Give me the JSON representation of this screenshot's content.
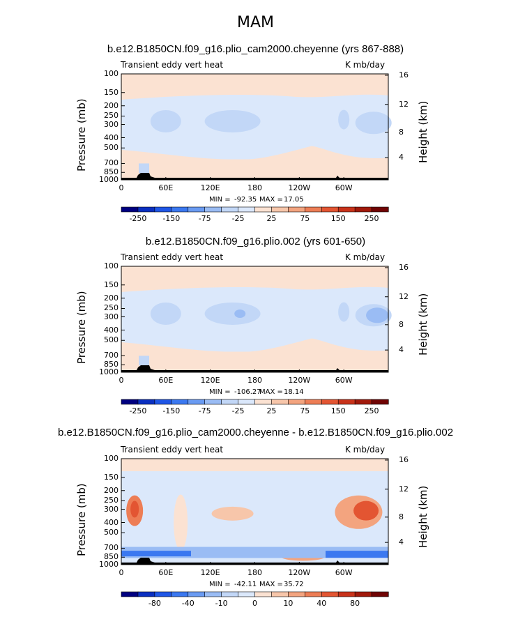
{
  "figure_title": "MAM",
  "chart_data": [
    {
      "type": "heatmap",
      "title": "b.e12.B1850CN.f09_g16.plio_cam2000.cheyenne (yrs 867-888)",
      "left_label": "Transient eddy vert heat",
      "right_label": "K mb/day",
      "ylabel": "Pressure (mb)",
      "ylabel_right": "Height (km)",
      "x_ticks": [
        "0",
        "60E",
        "120E",
        "180",
        "120W",
        "60W"
      ],
      "y_ticks": [
        "100",
        "150",
        "200",
        "250",
        "300",
        "400",
        "500",
        "700",
        "850",
        "1000"
      ],
      "y_ticks_right": [
        "16",
        "12",
        "8",
        "4"
      ],
      "stats": {
        "min_label": "MIN = ",
        "min": "-92.35",
        "max_label": "MAX = ",
        "max": "17.05"
      },
      "colorbar": {
        "levels": [
          "-250",
          "-150",
          "-75",
          "-25",
          "25",
          "75",
          "150",
          "250"
        ],
        "colors": [
          "#000080",
          "#0a2fc0",
          "#1f56e6",
          "#3b78f0",
          "#6a9bf2",
          "#9abcf4",
          "#c2d7f7",
          "#dbe8fb",
          "#fbe2d2",
          "#f7c6aa",
          "#f3a47f",
          "#ed7d55",
          "#e35532",
          "#c8321a",
          "#a1190b",
          "#700404"
        ]
      }
    },
    {
      "type": "heatmap",
      "title": "b.e12.B1850CN.f09_g16.plio.002 (yrs 601-650)",
      "left_label": "Transient eddy vert heat",
      "right_label": "K mb/day",
      "ylabel": "Pressure (mb)",
      "ylabel_right": "Height (km)",
      "x_ticks": [
        "0",
        "60E",
        "120E",
        "180",
        "120W",
        "60W"
      ],
      "y_ticks": [
        "100",
        "150",
        "200",
        "250",
        "300",
        "400",
        "500",
        "700",
        "850",
        "1000"
      ],
      "y_ticks_right": [
        "16",
        "12",
        "8",
        "4"
      ],
      "stats": {
        "min_label": "MIN = ",
        "min": "-106.27",
        "max_label": "MAX = ",
        "max": "18.14"
      },
      "colorbar": {
        "levels": [
          "-250",
          "-150",
          "-75",
          "-25",
          "25",
          "75",
          "150",
          "250"
        ],
        "colors": [
          "#000080",
          "#0a2fc0",
          "#1f56e6",
          "#3b78f0",
          "#6a9bf2",
          "#9abcf4",
          "#c2d7f7",
          "#dbe8fb",
          "#fbe2d2",
          "#f7c6aa",
          "#f3a47f",
          "#ed7d55",
          "#e35532",
          "#c8321a",
          "#a1190b",
          "#700404"
        ]
      }
    },
    {
      "type": "heatmap",
      "title": "b.e12.B1850CN.f09_g16.plio_cam2000.cheyenne - b.e12.B1850CN.f09_g16.plio.002",
      "left_label": "Transient eddy vert heat",
      "right_label": "K mb/day",
      "ylabel": "Pressure (mb)",
      "ylabel_right": "Height (km)",
      "x_ticks": [
        "0",
        "60E",
        "120E",
        "180",
        "120W",
        "60W"
      ],
      "y_ticks": [
        "100",
        "150",
        "200",
        "250",
        "300",
        "400",
        "500",
        "700",
        "850",
        "1000"
      ],
      "y_ticks_right": [
        "16",
        "12",
        "8",
        "4"
      ],
      "stats": {
        "min_label": "MIN = ",
        "min": "-42.11",
        "max_label": "MAX = ",
        "max": "35.72"
      },
      "colorbar": {
        "levels": [
          "-80",
          "-40",
          "-10",
          "0",
          "10",
          "40",
          "80"
        ],
        "colors": [
          "#000080",
          "#0a2fc0",
          "#1f56e6",
          "#3b78f0",
          "#6a9bf2",
          "#9abcf4",
          "#c2d7f7",
          "#dbe8fb",
          "#fbe2d2",
          "#f7c6aa",
          "#f3a47f",
          "#ed7d55",
          "#e35532",
          "#c8321a",
          "#a1190b",
          "#700404"
        ]
      }
    }
  ]
}
